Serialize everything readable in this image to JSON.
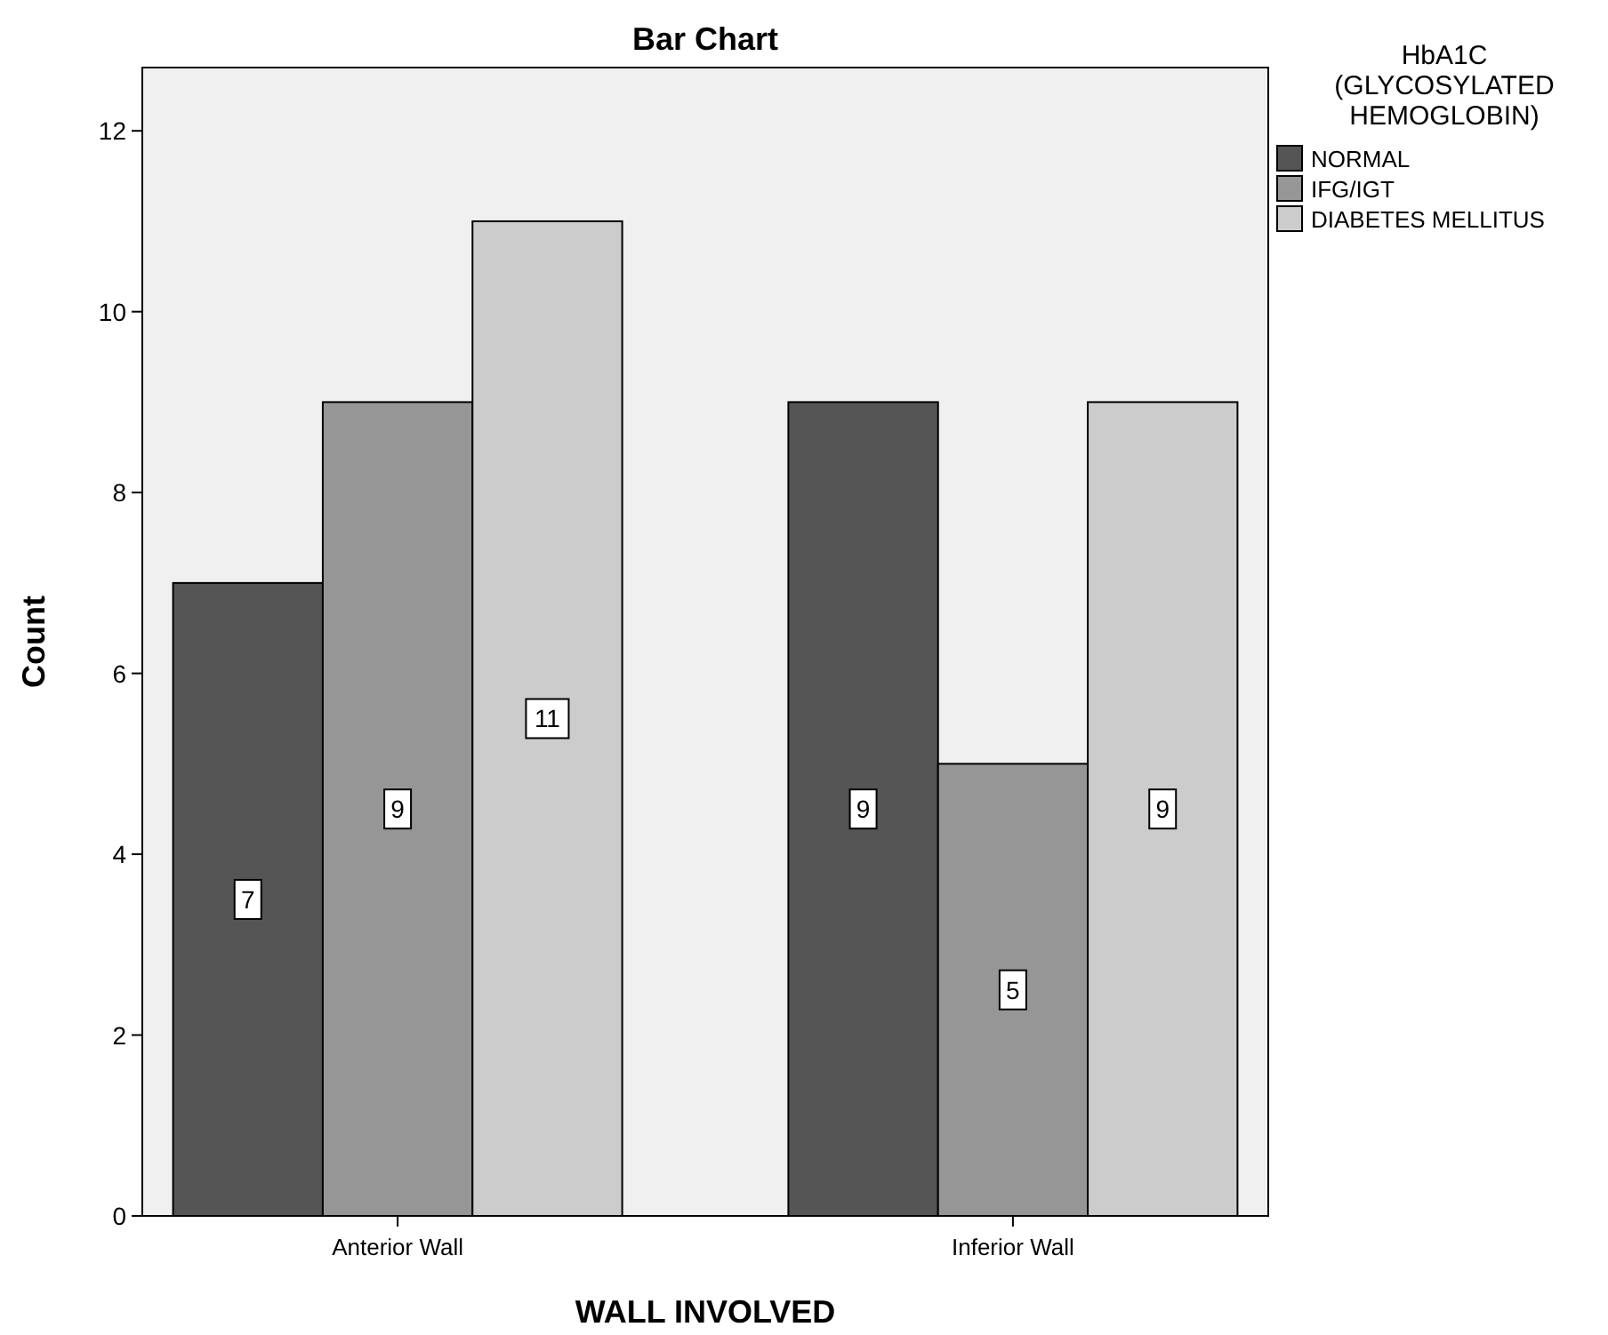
{
  "chart_data": {
    "type": "bar",
    "title": "Bar Chart",
    "xlabel": "WALL INVOLVED",
    "ylabel": "Count",
    "legend_title": "HbA1C (GLYCOSYLATED HEMOGLOBIN)",
    "categories": [
      "Anterior Wall",
      "Inferior Wall"
    ],
    "series": [
      {
        "name": "NORMAL",
        "color": "#555555",
        "values": [
          7,
          9
        ]
      },
      {
        "name": "IFG/IGT",
        "color": "#969696",
        "values": [
          9,
          5
        ]
      },
      {
        "name": "DIABETES MELLITUS",
        "color": "#cccccc",
        "values": [
          11,
          9
        ]
      }
    ],
    "ylim": [
      0,
      12.7
    ],
    "yticks": [
      0,
      2,
      4,
      6,
      8,
      10,
      12
    ],
    "data_labels": true,
    "legend": "right",
    "grid": false
  }
}
